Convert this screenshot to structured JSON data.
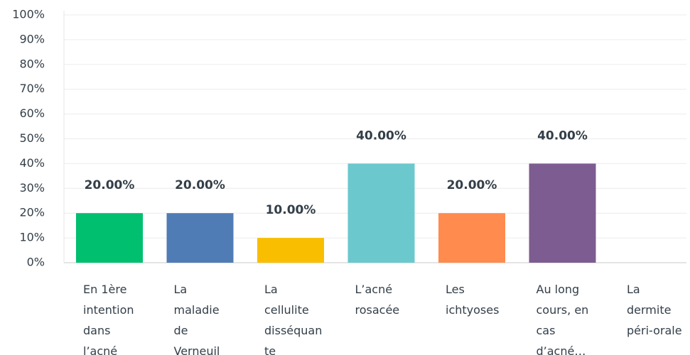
{
  "chart_data": {
    "type": "bar",
    "categories": [
      "En 1ère intention dans l’acné",
      "La maladie de Verneuil",
      "La cellulite disséquante",
      "L’acné rosacée",
      "Les ichtyoses",
      "Au long cours, en cas d’acné…",
      "La dermite péri-orale"
    ],
    "values": [
      20,
      20,
      10,
      40,
      20,
      40,
      0
    ],
    "value_labels": [
      "20.00%",
      "20.00%",
      "10.00%",
      "40.00%",
      "20.00%",
      "40.00%",
      null
    ],
    "colors": [
      "#00bf6f",
      "#507cb6",
      "#f9be00",
      "#6bc8cd",
      "#ff8b4f",
      "#7d5c91",
      "#dac4ab"
    ],
    "ylim": [
      0,
      100
    ],
    "yticks": [
      {
        "value": 0,
        "label": "0%"
      },
      {
        "value": 10,
        "label": "10%"
      },
      {
        "value": 20,
        "label": "20%"
      },
      {
        "value": 30,
        "label": "30%"
      },
      {
        "value": 40,
        "label": "40%"
      },
      {
        "value": 50,
        "label": "50%"
      },
      {
        "value": 60,
        "label": "60%"
      },
      {
        "value": 70,
        "label": "70%"
      },
      {
        "value": 80,
        "label": "80%"
      },
      {
        "value": 90,
        "label": "90%"
      },
      {
        "value": 100,
        "label": "100%"
      }
    ],
    "grid": true
  }
}
